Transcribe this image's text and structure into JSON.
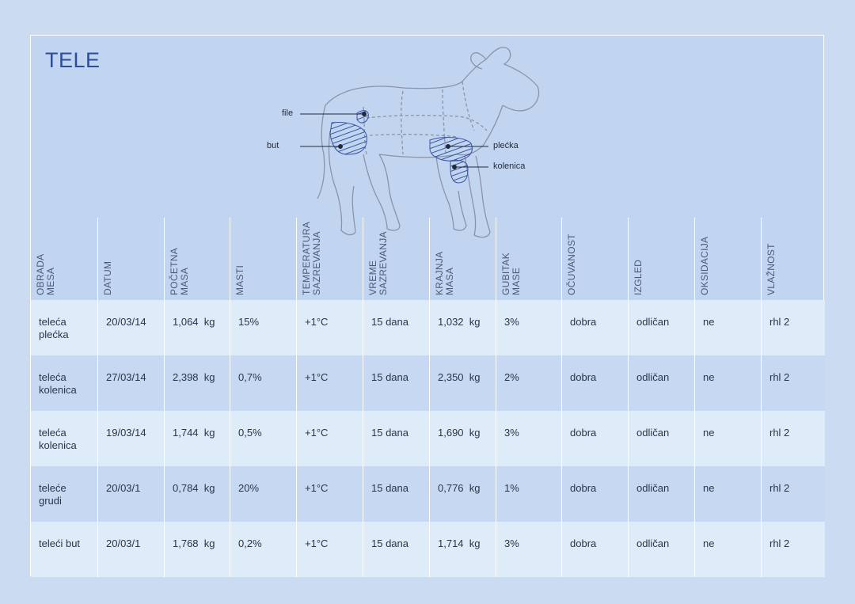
{
  "title": "TELE",
  "diagram_labels": {
    "file": "file",
    "but": "but",
    "plecka": "plećka",
    "kolenica": "kolenica"
  },
  "headers": [
    "OBRADA\nMESA",
    "DATUM",
    "POČETNA\nMASA",
    "MASTI",
    "TEMPERATURA\nSAZREVANJA",
    "VREME\nSAZREVANJA",
    "KRAJNJA\nMASA",
    "GUBITAK\nMASE",
    "OČUVANOST",
    "IZGLED",
    "OKSIDACIJA",
    "VLAŽNOST"
  ],
  "rows": [
    [
      "teleća\nplećka",
      "20/03/14",
      "1,064  kg",
      "15%",
      "+1°C",
      "15 dana",
      "1,032  kg",
      "3%",
      "dobra",
      "odličan",
      "ne",
      "rhl 2"
    ],
    [
      "teleća\nkolenica",
      "27/03/14",
      "2,398  kg",
      "0,7%",
      "+1°C",
      "15 dana",
      "2,350  kg",
      "2%",
      "dobra",
      "odličan",
      "ne",
      "rhl 2"
    ],
    [
      "teleća\nkolenica",
      "19/03/14",
      "1,744  kg",
      "0,5%",
      "+1°C",
      "15 dana",
      "1,690  kg",
      "3%",
      "dobra",
      "odličan",
      "ne",
      "rhl 2"
    ],
    [
      "teleće\ngrudi",
      "20/03/1",
      "0,784  kg",
      "20%",
      "+1°C",
      "15 dana",
      "0,776  kg",
      "1%",
      "dobra",
      "odličan",
      "ne",
      "rhl 2"
    ],
    [
      "teleći but",
      "20/03/1",
      "1,768  kg",
      "0,2%",
      "+1°C",
      "15 dana",
      "1,714  kg",
      "3%",
      "dobra",
      "odličan",
      "ne",
      "rhl 2"
    ]
  ]
}
